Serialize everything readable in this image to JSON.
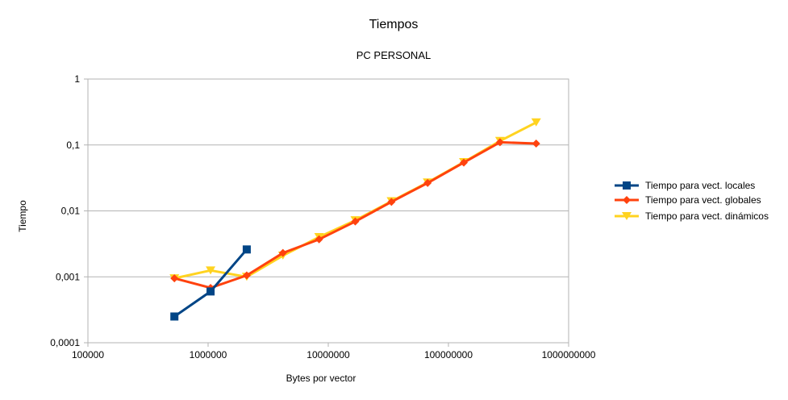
{
  "chart_data": {
    "type": "line",
    "title": "Tiempos",
    "subtitle": "PC PERSONAL",
    "xlabel": "Bytes por vector",
    "ylabel": "Tiempo",
    "xscale": "log",
    "yscale": "log",
    "xlim": [
      100000,
      1000000000
    ],
    "ylim": [
      0.0001,
      1
    ],
    "xticks": [
      "100000",
      "1000000",
      "10000000",
      "100000000",
      "1000000000"
    ],
    "yticks": [
      "1",
      "0,1",
      "0,01",
      "0,001",
      "0,0001"
    ],
    "grid": "horizontal",
    "legend_position": "right",
    "series": [
      {
        "name": "Tiempo para vect. locales",
        "color": "#004586",
        "marker": "square",
        "x": [
          524288,
          1048576,
          2097152
        ],
        "y": [
          0.00025,
          0.0006,
          0.0026
        ]
      },
      {
        "name": "Tiempo para vect. globales",
        "color": "#ff420e",
        "marker": "diamond",
        "x": [
          524288,
          1048576,
          2097152,
          4194304,
          8388608,
          16777216,
          33554432,
          67108864,
          134217728,
          268435456,
          536870912
        ],
        "y": [
          0.00095,
          0.00068,
          0.00105,
          0.0023,
          0.0037,
          0.0069,
          0.0137,
          0.0265,
          0.054,
          0.11,
          0.105
        ]
      },
      {
        "name": "Tiempo para vect. dinámicos",
        "color": "#ffd320",
        "marker": "triangle-down",
        "x": [
          524288,
          1048576,
          2097152,
          4194304,
          8388608,
          16777216,
          33554432,
          67108864,
          134217728,
          268435456,
          536870912
        ],
        "y": [
          0.00095,
          0.00125,
          0.001,
          0.0021,
          0.004,
          0.0072,
          0.014,
          0.027,
          0.055,
          0.115,
          0.22
        ]
      }
    ]
  }
}
